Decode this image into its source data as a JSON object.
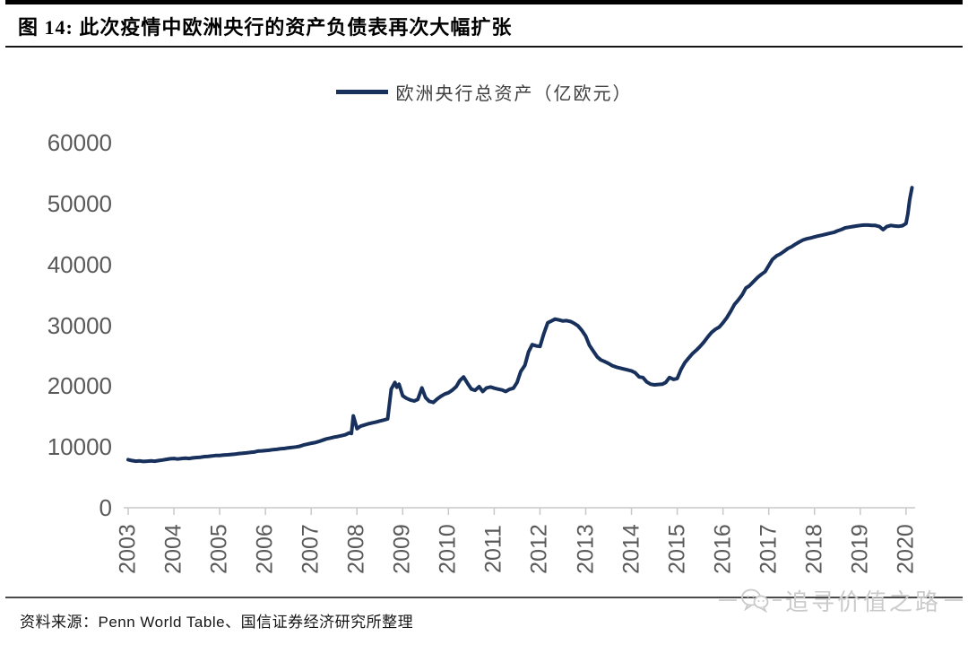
{
  "header": {
    "title": "图 14:  此次疫情中欧洲央行的资产负债表再次大幅扩张"
  },
  "legend": {
    "label": "欧洲央行总资产（亿欧元）"
  },
  "footer": {
    "source": "资料来源：Penn World Table、国信证券经济研究所整理"
  },
  "watermark": {
    "label": "追寻价值之路",
    "icon": "wechat-bubbles-icon"
  },
  "colors": {
    "line": "#17305c",
    "axis": "#d6d6d6",
    "tick": "#c9c9c9",
    "axis_text": "#595959"
  },
  "chart_data": {
    "type": "line",
    "title": "欧洲央行总资产（亿欧元）",
    "xlabel": "",
    "ylabel": "",
    "grid": false,
    "legend_position": "top-center",
    "ylim": [
      0,
      60000
    ],
    "xlim": [
      2003,
      2020.2
    ],
    "y_ticks": [
      0,
      10000,
      20000,
      30000,
      40000,
      50000,
      60000
    ],
    "x_ticks": [
      2003,
      2004,
      2005,
      2006,
      2007,
      2008,
      2009,
      2010,
      2011,
      2012,
      2013,
      2014,
      2015,
      2016,
      2017,
      2018,
      2019,
      2020
    ],
    "series": [
      {
        "name": "欧洲央行总资产（亿欧元）",
        "points": [
          [
            2003.0,
            7900
          ],
          [
            2003.08,
            7750
          ],
          [
            2003.17,
            7650
          ],
          [
            2003.25,
            7700
          ],
          [
            2003.33,
            7600
          ],
          [
            2003.42,
            7650
          ],
          [
            2003.5,
            7700
          ],
          [
            2003.58,
            7650
          ],
          [
            2003.67,
            7750
          ],
          [
            2003.75,
            7850
          ],
          [
            2003.83,
            7950
          ],
          [
            2003.92,
            8050
          ],
          [
            2004.0,
            8100
          ],
          [
            2004.08,
            8000
          ],
          [
            2004.17,
            8100
          ],
          [
            2004.25,
            8150
          ],
          [
            2004.33,
            8100
          ],
          [
            2004.42,
            8200
          ],
          [
            2004.5,
            8250
          ],
          [
            2004.58,
            8300
          ],
          [
            2004.67,
            8400
          ],
          [
            2004.75,
            8450
          ],
          [
            2004.83,
            8500
          ],
          [
            2004.92,
            8600
          ],
          [
            2005.0,
            8600
          ],
          [
            2005.08,
            8650
          ],
          [
            2005.17,
            8700
          ],
          [
            2005.25,
            8750
          ],
          [
            2005.33,
            8800
          ],
          [
            2005.42,
            8900
          ],
          [
            2005.5,
            8950
          ],
          [
            2005.58,
            9000
          ],
          [
            2005.67,
            9100
          ],
          [
            2005.75,
            9150
          ],
          [
            2005.83,
            9300
          ],
          [
            2005.92,
            9350
          ],
          [
            2006.0,
            9400
          ],
          [
            2006.08,
            9450
          ],
          [
            2006.17,
            9550
          ],
          [
            2006.25,
            9600
          ],
          [
            2006.33,
            9700
          ],
          [
            2006.42,
            9750
          ],
          [
            2006.5,
            9850
          ],
          [
            2006.58,
            9900
          ],
          [
            2006.67,
            10000
          ],
          [
            2006.75,
            10100
          ],
          [
            2006.83,
            10300
          ],
          [
            2006.92,
            10450
          ],
          [
            2007.0,
            10600
          ],
          [
            2007.08,
            10700
          ],
          [
            2007.17,
            10900
          ],
          [
            2007.25,
            11100
          ],
          [
            2007.33,
            11300
          ],
          [
            2007.42,
            11450
          ],
          [
            2007.5,
            11600
          ],
          [
            2007.58,
            11700
          ],
          [
            2007.67,
            11850
          ],
          [
            2007.75,
            12000
          ],
          [
            2007.83,
            12300
          ],
          [
            2007.88,
            12200
          ],
          [
            2007.92,
            15100
          ],
          [
            2008.0,
            13000
          ],
          [
            2008.08,
            13400
          ],
          [
            2008.17,
            13600
          ],
          [
            2008.25,
            13800
          ],
          [
            2008.33,
            13950
          ],
          [
            2008.42,
            14100
          ],
          [
            2008.5,
            14250
          ],
          [
            2008.58,
            14400
          ],
          [
            2008.67,
            14600
          ],
          [
            2008.75,
            19500
          ],
          [
            2008.83,
            20600
          ],
          [
            2008.87,
            19800
          ],
          [
            2008.92,
            20300
          ],
          [
            2009.0,
            18400
          ],
          [
            2009.08,
            18000
          ],
          [
            2009.17,
            17700
          ],
          [
            2009.25,
            17550
          ],
          [
            2009.33,
            17800
          ],
          [
            2009.42,
            19700
          ],
          [
            2009.5,
            18100
          ],
          [
            2009.58,
            17500
          ],
          [
            2009.67,
            17300
          ],
          [
            2009.75,
            17850
          ],
          [
            2009.83,
            18300
          ],
          [
            2009.92,
            18700
          ],
          [
            2010.0,
            18900
          ],
          [
            2010.08,
            19300
          ],
          [
            2010.17,
            19900
          ],
          [
            2010.25,
            20900
          ],
          [
            2010.33,
            21500
          ],
          [
            2010.42,
            20400
          ],
          [
            2010.5,
            19500
          ],
          [
            2010.58,
            19300
          ],
          [
            2010.67,
            19900
          ],
          [
            2010.75,
            19100
          ],
          [
            2010.83,
            19700
          ],
          [
            2010.92,
            19850
          ],
          [
            2011.0,
            19650
          ],
          [
            2011.08,
            19500
          ],
          [
            2011.17,
            19350
          ],
          [
            2011.25,
            19100
          ],
          [
            2011.33,
            19450
          ],
          [
            2011.42,
            19650
          ],
          [
            2011.5,
            20600
          ],
          [
            2011.58,
            22400
          ],
          [
            2011.67,
            23400
          ],
          [
            2011.75,
            25600
          ],
          [
            2011.83,
            26800
          ],
          [
            2011.92,
            26600
          ],
          [
            2012.0,
            26500
          ],
          [
            2012.08,
            28500
          ],
          [
            2012.17,
            30400
          ],
          [
            2012.25,
            30700
          ],
          [
            2012.33,
            31000
          ],
          [
            2012.42,
            30850
          ],
          [
            2012.5,
            30700
          ],
          [
            2012.58,
            30750
          ],
          [
            2012.67,
            30600
          ],
          [
            2012.75,
            30300
          ],
          [
            2012.83,
            29900
          ],
          [
            2012.92,
            29100
          ],
          [
            2013.0,
            28200
          ],
          [
            2013.08,
            26700
          ],
          [
            2013.17,
            25700
          ],
          [
            2013.25,
            24800
          ],
          [
            2013.33,
            24300
          ],
          [
            2013.42,
            24000
          ],
          [
            2013.5,
            23700
          ],
          [
            2013.58,
            23350
          ],
          [
            2013.67,
            23100
          ],
          [
            2013.75,
            22950
          ],
          [
            2013.83,
            22800
          ],
          [
            2013.92,
            22650
          ],
          [
            2014.0,
            22500
          ],
          [
            2014.08,
            22200
          ],
          [
            2014.17,
            21500
          ],
          [
            2014.25,
            21400
          ],
          [
            2014.33,
            20700
          ],
          [
            2014.42,
            20300
          ],
          [
            2014.5,
            20200
          ],
          [
            2014.58,
            20250
          ],
          [
            2014.67,
            20300
          ],
          [
            2014.75,
            20600
          ],
          [
            2014.83,
            21400
          ],
          [
            2014.92,
            21100
          ],
          [
            2015.0,
            21250
          ],
          [
            2015.08,
            22700
          ],
          [
            2015.17,
            23900
          ],
          [
            2015.25,
            24600
          ],
          [
            2015.33,
            25300
          ],
          [
            2015.42,
            25900
          ],
          [
            2015.5,
            26500
          ],
          [
            2015.58,
            27200
          ],
          [
            2015.67,
            28100
          ],
          [
            2015.75,
            28800
          ],
          [
            2015.83,
            29300
          ],
          [
            2015.92,
            29700
          ],
          [
            2016.0,
            30400
          ],
          [
            2016.08,
            31200
          ],
          [
            2016.17,
            32300
          ],
          [
            2016.25,
            33400
          ],
          [
            2016.33,
            34100
          ],
          [
            2016.42,
            35000
          ],
          [
            2016.5,
            36100
          ],
          [
            2016.58,
            36500
          ],
          [
            2016.67,
            37200
          ],
          [
            2016.75,
            37800
          ],
          [
            2016.83,
            38300
          ],
          [
            2016.92,
            38800
          ],
          [
            2017.0,
            39800
          ],
          [
            2017.08,
            40800
          ],
          [
            2017.17,
            41400
          ],
          [
            2017.25,
            41700
          ],
          [
            2017.33,
            42100
          ],
          [
            2017.42,
            42600
          ],
          [
            2017.5,
            42900
          ],
          [
            2017.58,
            43300
          ],
          [
            2017.67,
            43700
          ],
          [
            2017.75,
            44000
          ],
          [
            2017.83,
            44200
          ],
          [
            2017.92,
            44350
          ],
          [
            2018.0,
            44500
          ],
          [
            2018.08,
            44650
          ],
          [
            2018.17,
            44800
          ],
          [
            2018.25,
            44950
          ],
          [
            2018.33,
            45100
          ],
          [
            2018.42,
            45250
          ],
          [
            2018.5,
            45500
          ],
          [
            2018.58,
            45700
          ],
          [
            2018.67,
            46000
          ],
          [
            2018.75,
            46100
          ],
          [
            2018.83,
            46200
          ],
          [
            2018.92,
            46300
          ],
          [
            2019.0,
            46400
          ],
          [
            2019.08,
            46450
          ],
          [
            2019.17,
            46450
          ],
          [
            2019.25,
            46400
          ],
          [
            2019.33,
            46400
          ],
          [
            2019.42,
            46200
          ],
          [
            2019.5,
            45700
          ],
          [
            2019.58,
            46200
          ],
          [
            2019.67,
            46400
          ],
          [
            2019.75,
            46300
          ],
          [
            2019.83,
            46250
          ],
          [
            2019.92,
            46350
          ],
          [
            2020.0,
            46700
          ],
          [
            2020.04,
            48300
          ],
          [
            2020.08,
            50600
          ],
          [
            2020.13,
            52600
          ]
        ]
      }
    ]
  }
}
